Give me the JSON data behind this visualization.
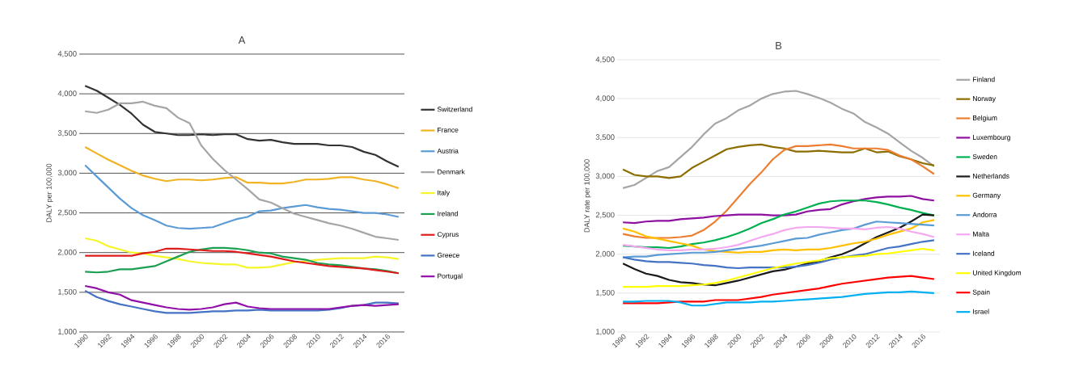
{
  "chart_data": [
    {
      "type": "line",
      "title": "A",
      "ylabel": "DALY per 100,000",
      "categories": [
        "1990",
        null,
        "1992",
        null,
        "1994",
        null,
        "1996",
        null,
        "1998",
        null,
        "2000",
        null,
        "2002",
        null,
        "2004",
        null,
        "2006",
        null,
        "2008",
        null,
        "2010",
        null,
        "2012",
        null,
        "2014",
        null,
        "2016",
        null
      ],
      "ylim": [
        1000,
        4500
      ],
      "yticks": [
        {
          "value": 1000,
          "label": "1,000"
        },
        {
          "value": 1500,
          "label": "1,500"
        },
        {
          "value": 2000,
          "label": "2,000"
        },
        {
          "value": 2500,
          "label": "2,500"
        },
        {
          "value": 3000,
          "label": "3,000"
        },
        {
          "value": 3500,
          "label": "3,500"
        },
        {
          "value": 4000,
          "label": "4,000"
        },
        {
          "value": 4500,
          "label": "4,500"
        }
      ],
      "grid": "y",
      "legend": "right",
      "series": [
        {
          "name": "Switzerland",
          "color": "#333333",
          "values": [
            4100,
            4040,
            3950,
            3860,
            3750,
            3610,
            3520,
            3500,
            3480,
            3480,
            3490,
            3480,
            3490,
            3490,
            3430,
            3410,
            3420,
            3390,
            3370,
            3370,
            3370,
            3350,
            3350,
            3330,
            3270,
            3230,
            3150,
            3080
          ]
        },
        {
          "name": "France",
          "color": "#f0b323",
          "values": [
            3330,
            3250,
            3170,
            3100,
            3030,
            2970,
            2930,
            2900,
            2920,
            2920,
            2910,
            2920,
            2940,
            2950,
            2880,
            2880,
            2870,
            2870,
            2890,
            2920,
            2920,
            2930,
            2950,
            2950,
            2920,
            2900,
            2860,
            2810
          ]
        },
        {
          "name": "Austria",
          "color": "#5b9bd5",
          "values": [
            3100,
            2960,
            2820,
            2680,
            2560,
            2470,
            2410,
            2340,
            2310,
            2300,
            2310,
            2320,
            2370,
            2420,
            2450,
            2520,
            2530,
            2560,
            2580,
            2600,
            2570,
            2550,
            2540,
            2520,
            2500,
            2500,
            2480,
            2450
          ]
        },
        {
          "name": "Denmark",
          "color": "#a5a5a5",
          "values": [
            3780,
            3760,
            3800,
            3880,
            3880,
            3900,
            3850,
            3820,
            3700,
            3630,
            3350,
            3180,
            3040,
            2920,
            2800,
            2670,
            2630,
            2560,
            2490,
            2450,
            2410,
            2370,
            2340,
            2300,
            2250,
            2200,
            2180,
            2160
          ]
        },
        {
          "name": "Italy",
          "color": "#f5f52a",
          "values": [
            2180,
            2150,
            2080,
            2040,
            2000,
            1990,
            1960,
            1940,
            1920,
            1890,
            1870,
            1860,
            1850,
            1850,
            1810,
            1810,
            1820,
            1850,
            1880,
            1890,
            1910,
            1920,
            1930,
            1930,
            1930,
            1950,
            1940,
            1920
          ]
        },
        {
          "name": "Ireland",
          "color": "#1aa050",
          "values": [
            1760,
            1750,
            1760,
            1790,
            1790,
            1810,
            1830,
            1890,
            1950,
            2010,
            2040,
            2060,
            2060,
            2050,
            2030,
            2000,
            1990,
            1950,
            1930,
            1910,
            1870,
            1850,
            1840,
            1820,
            1800,
            1790,
            1770,
            1740
          ]
        },
        {
          "name": "Cyprus",
          "color": "#e01b1b",
          "values": [
            1960,
            1960,
            1960,
            1960,
            1960,
            1990,
            2010,
            2050,
            2050,
            2040,
            2030,
            2020,
            2020,
            2010,
            1990,
            1970,
            1950,
            1920,
            1890,
            1870,
            1850,
            1830,
            1820,
            1810,
            1800,
            1780,
            1760,
            1740
          ]
        },
        {
          "name": "Greece",
          "color": "#4472c4",
          "values": [
            1520,
            1440,
            1390,
            1350,
            1320,
            1290,
            1260,
            1240,
            1240,
            1240,
            1250,
            1260,
            1260,
            1270,
            1270,
            1280,
            1270,
            1270,
            1270,
            1270,
            1270,
            1280,
            1300,
            1330,
            1340,
            1370,
            1370,
            1360
          ]
        },
        {
          "name": "Portugal",
          "color": "#9010a8",
          "values": [
            1580,
            1550,
            1500,
            1470,
            1400,
            1370,
            1340,
            1310,
            1290,
            1280,
            1290,
            1310,
            1350,
            1370,
            1320,
            1300,
            1290,
            1290,
            1290,
            1290,
            1290,
            1290,
            1310,
            1330,
            1340,
            1330,
            1340,
            1350
          ]
        }
      ]
    },
    {
      "type": "line",
      "title": "B",
      "ylabel": "DALY rate per 100,000",
      "categories": [
        "1990",
        null,
        "1992",
        null,
        "1994",
        null,
        "1996",
        null,
        "1998",
        null,
        "2000",
        null,
        "2002",
        null,
        "2004",
        null,
        "2006",
        null,
        "2008",
        null,
        "2010",
        null,
        "2012",
        null,
        "2014",
        null,
        "2016",
        null
      ],
      "ylim": [
        1000,
        4500
      ],
      "yticks": [
        {
          "value": 1000,
          "label": "1,000"
        },
        {
          "value": 1500,
          "label": "1,500"
        },
        {
          "value": 2000,
          "label": "2,000"
        },
        {
          "value": 2500,
          "label": "2,500"
        },
        {
          "value": 3000,
          "label": "3,000"
        },
        {
          "value": 3500,
          "label": "3,500"
        },
        {
          "value": 4000,
          "label": "4,000"
        },
        {
          "value": 4500,
          "label": "4,500"
        }
      ],
      "grid": "y",
      "legend": "right",
      "series": [
        {
          "name": "Finland",
          "color": "#a5a5a5",
          "values": [
            2850,
            2890,
            2980,
            3070,
            3120,
            3250,
            3380,
            3540,
            3680,
            3750,
            3850,
            3910,
            4000,
            4060,
            4090,
            4100,
            4060,
            4010,
            3950,
            3870,
            3810,
            3700,
            3630,
            3550,
            3440,
            3330,
            3240,
            3130
          ]
        },
        {
          "name": "Norway",
          "color": "#8c6d00",
          "values": [
            3090,
            3020,
            3000,
            3000,
            2980,
            3000,
            3110,
            3190,
            3270,
            3350,
            3380,
            3400,
            3410,
            3380,
            3360,
            3320,
            3320,
            3330,
            3320,
            3310,
            3310,
            3360,
            3310,
            3320,
            3260,
            3220,
            3170,
            3140
          ]
        },
        {
          "name": "Belgium",
          "color": "#ed7d31",
          "values": [
            2260,
            2230,
            2210,
            2210,
            2210,
            2220,
            2240,
            2310,
            2420,
            2560,
            2730,
            2900,
            3050,
            3220,
            3340,
            3390,
            3390,
            3400,
            3410,
            3390,
            3360,
            3360,
            3360,
            3340,
            3270,
            3220,
            3130,
            3030
          ]
        },
        {
          "name": "Luxembourg",
          "color": "#8e0fa0",
          "values": [
            2410,
            2400,
            2420,
            2430,
            2430,
            2450,
            2460,
            2470,
            2490,
            2500,
            2510,
            2510,
            2510,
            2500,
            2500,
            2510,
            2550,
            2570,
            2580,
            2640,
            2680,
            2710,
            2730,
            2740,
            2740,
            2750,
            2710,
            2690
          ]
        },
        {
          "name": "Sweden",
          "color": "#00b050",
          "values": [
            2110,
            2100,
            2090,
            2090,
            2080,
            2100,
            2130,
            2150,
            2180,
            2220,
            2270,
            2330,
            2400,
            2450,
            2510,
            2550,
            2600,
            2650,
            2680,
            2690,
            2690,
            2690,
            2670,
            2640,
            2600,
            2570,
            2530,
            2500
          ]
        },
        {
          "name": "Netherlands",
          "color": "#1a1a1a",
          "values": [
            1880,
            1810,
            1750,
            1720,
            1670,
            1640,
            1630,
            1610,
            1600,
            1630,
            1660,
            1700,
            1740,
            1780,
            1800,
            1840,
            1880,
            1910,
            1960,
            2000,
            2060,
            2140,
            2220,
            2280,
            2340,
            2420,
            2510,
            2500
          ]
        },
        {
          "name": "Germany",
          "color": "#ffc000",
          "values": [
            2330,
            2290,
            2230,
            2200,
            2170,
            2140,
            2110,
            2060,
            2040,
            2030,
            2020,
            2030,
            2030,
            2050,
            2060,
            2050,
            2060,
            2060,
            2080,
            2110,
            2140,
            2160,
            2200,
            2250,
            2290,
            2330,
            2410,
            2440
          ]
        },
        {
          "name": "Andorra",
          "color": "#5b9bd5",
          "values": [
            1960,
            1970,
            1970,
            1990,
            2000,
            2010,
            2020,
            2020,
            2030,
            2050,
            2070,
            2090,
            2110,
            2140,
            2170,
            2200,
            2210,
            2250,
            2280,
            2310,
            2330,
            2380,
            2420,
            2410,
            2400,
            2390,
            2380,
            2370
          ]
        },
        {
          "name": "Malta",
          "color": "#f4a8f0",
          "values": [
            2120,
            2100,
            2080,
            2060,
            2050,
            2050,
            2060,
            2060,
            2070,
            2090,
            2120,
            2170,
            2220,
            2260,
            2310,
            2340,
            2350,
            2350,
            2340,
            2330,
            2330,
            2320,
            2340,
            2350,
            2330,
            2290,
            2260,
            2220
          ]
        },
        {
          "name": "Iceland",
          "color": "#4472c4",
          "values": [
            1960,
            1930,
            1910,
            1900,
            1900,
            1890,
            1880,
            1860,
            1850,
            1830,
            1820,
            1830,
            1830,
            1830,
            1830,
            1840,
            1860,
            1890,
            1930,
            1960,
            1980,
            2000,
            2040,
            2080,
            2100,
            2130,
            2160,
            2180
          ]
        },
        {
          "name": "United Kingdom",
          "color": "#ffff00",
          "values": [
            1580,
            1580,
            1580,
            1590,
            1590,
            1590,
            1600,
            1610,
            1630,
            1660,
            1700,
            1740,
            1780,
            1820,
            1850,
            1880,
            1900,
            1920,
            1950,
            1960,
            1970,
            1980,
            2000,
            2010,
            2030,
            2050,
            2070,
            2050
          ]
        },
        {
          "name": "Spain",
          "color": "#ff0000",
          "values": [
            1370,
            1370,
            1370,
            1370,
            1380,
            1390,
            1390,
            1390,
            1410,
            1410,
            1410,
            1430,
            1450,
            1480,
            1500,
            1520,
            1540,
            1560,
            1590,
            1620,
            1640,
            1660,
            1680,
            1700,
            1710,
            1720,
            1700,
            1680
          ]
        },
        {
          "name": "Israel",
          "color": "#00b0f0",
          "values": [
            1390,
            1390,
            1400,
            1400,
            1400,
            1380,
            1340,
            1340,
            1360,
            1380,
            1380,
            1380,
            1390,
            1390,
            1400,
            1410,
            1420,
            1430,
            1440,
            1450,
            1470,
            1490,
            1500,
            1510,
            1510,
            1520,
            1510,
            1500
          ]
        }
      ]
    }
  ]
}
